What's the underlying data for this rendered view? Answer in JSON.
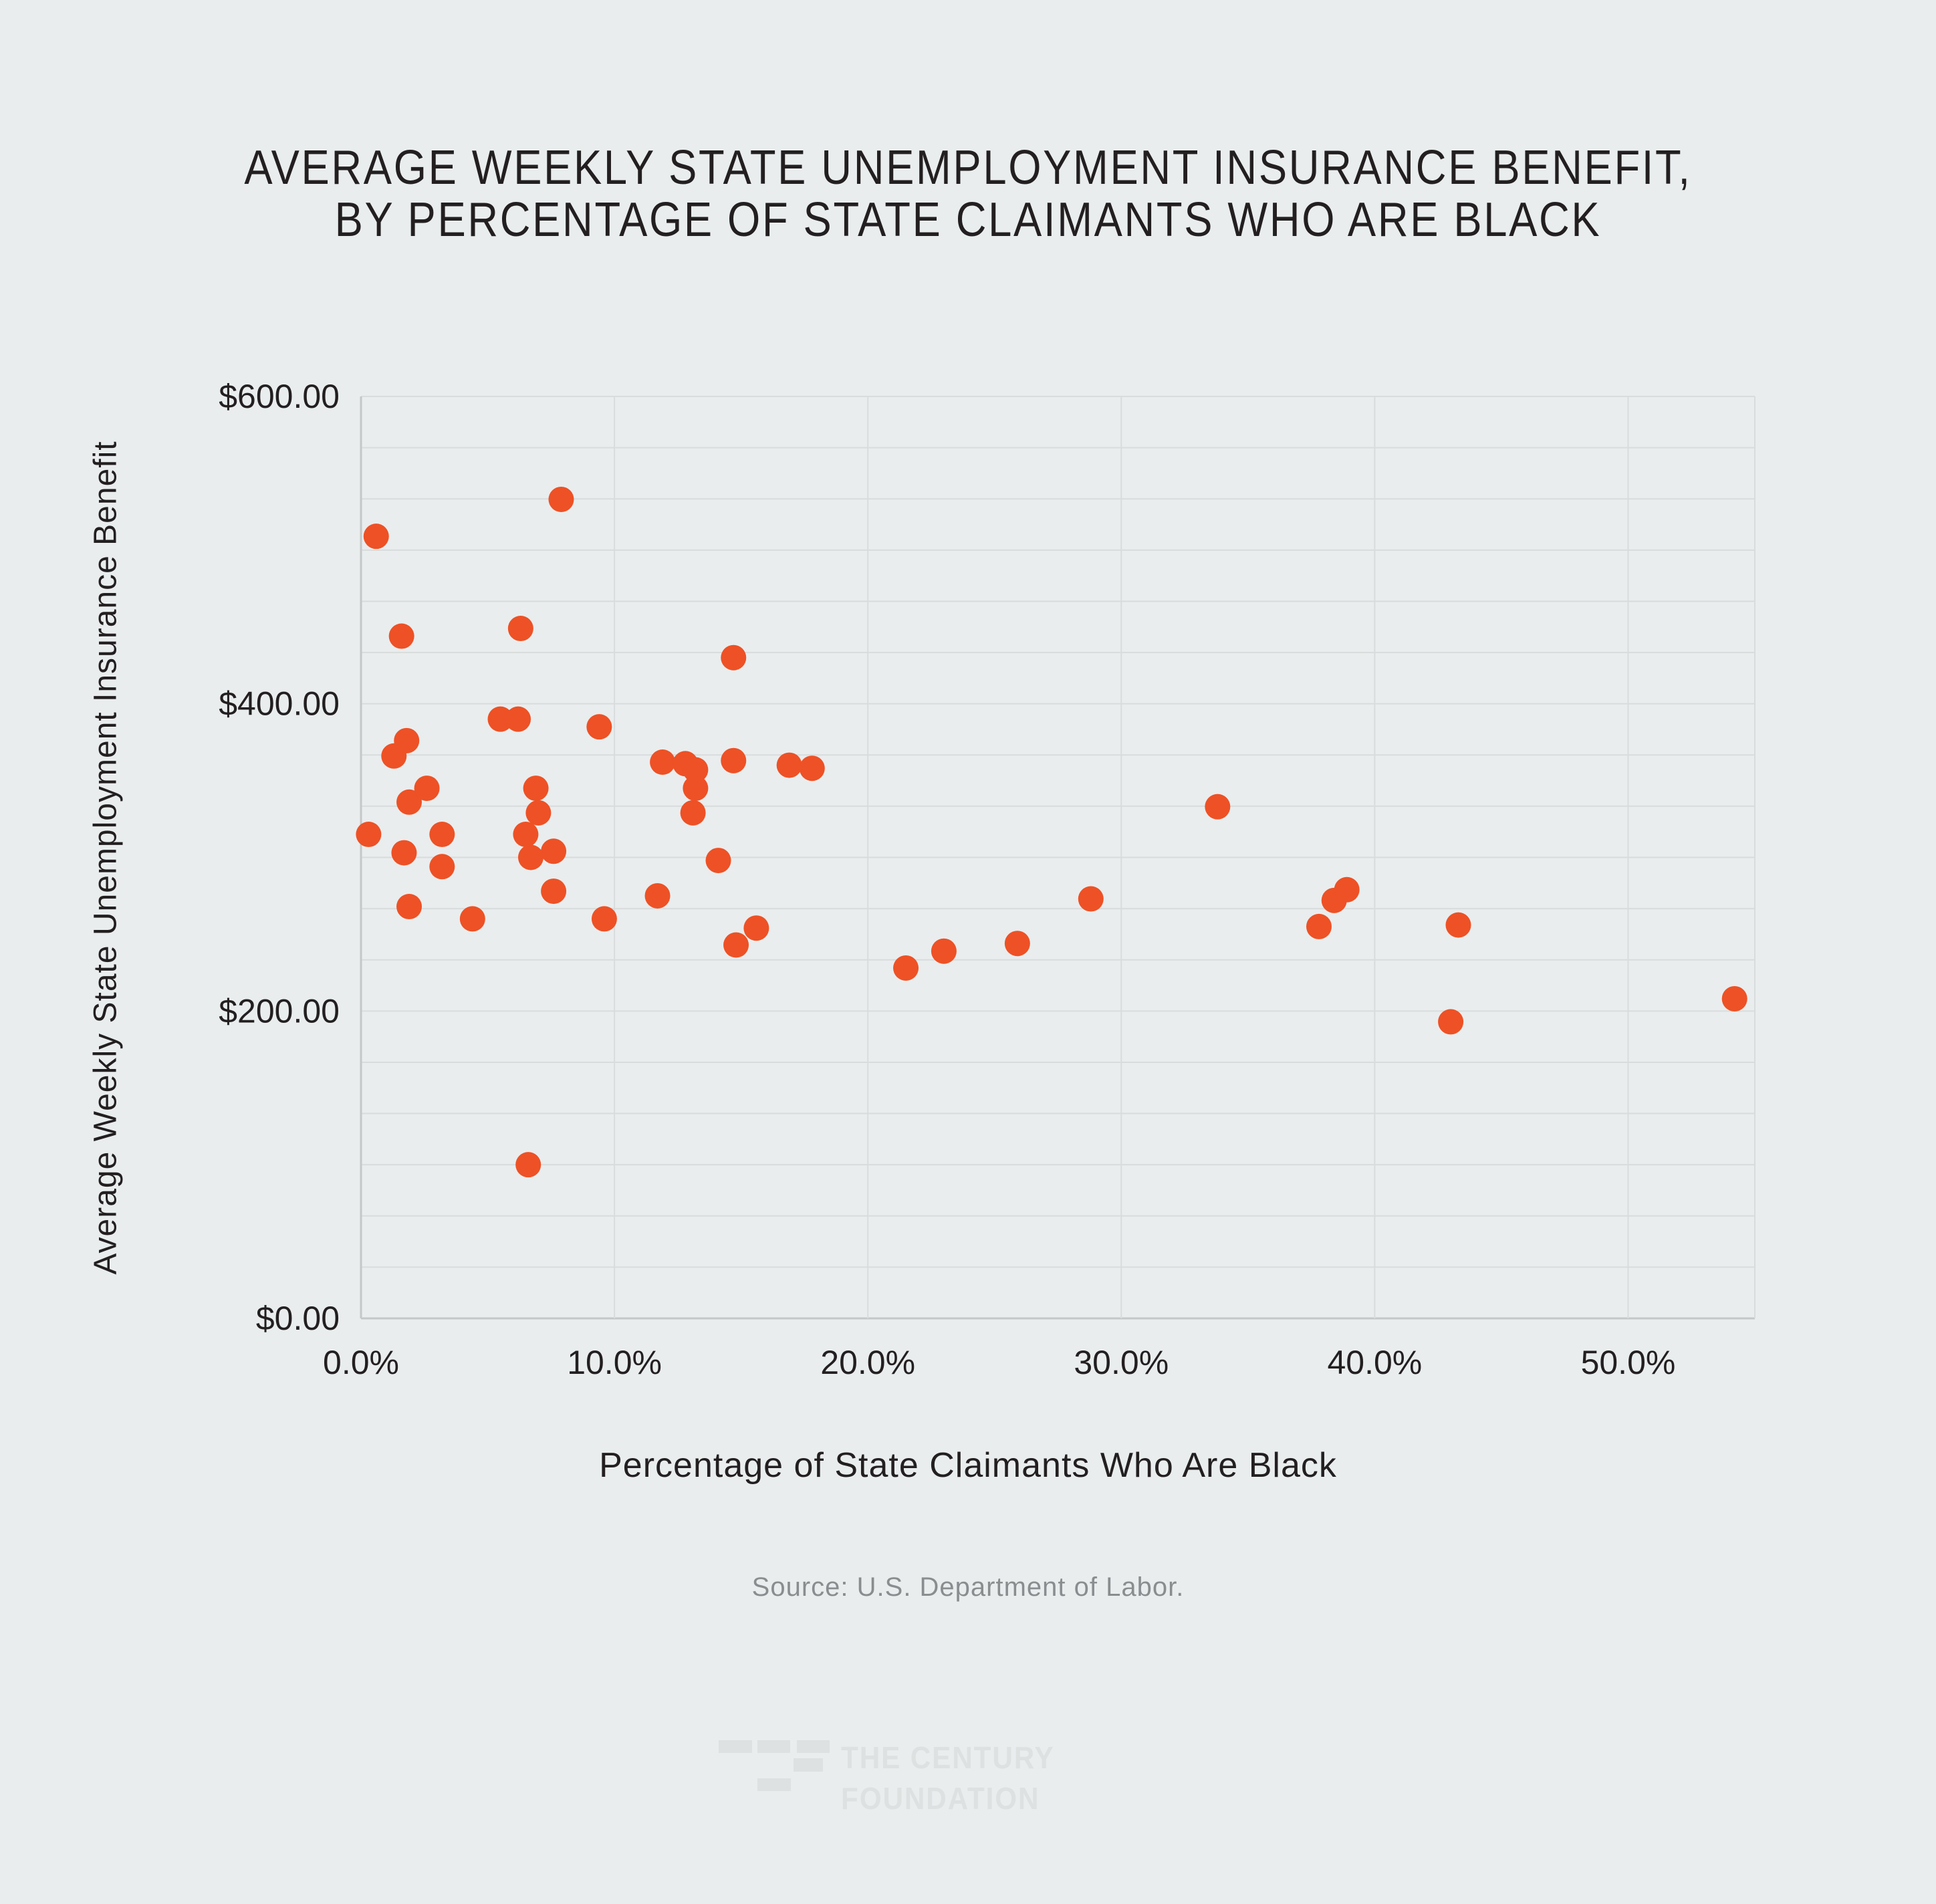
{
  "colors": {
    "background": "#e9edee",
    "accent": "#ee5125",
    "gridline": "#d8dcdc",
    "axis_line": "#c4c8c8",
    "title_text": "#231f20",
    "tick_text": "#231f20",
    "source_text": "#8a8d8f",
    "logo": "#dde1e1"
  },
  "title": {
    "line1": "AVERAGE WEEKLY STATE UNEMPLOYMENT INSURANCE BENEFIT,",
    "line2": "BY PERCENTAGE OF STATE CLAIMANTS WHO ARE BLACK"
  },
  "source_text": "Source: U.S. Department of Labor.",
  "logo": {
    "name_line1": "THE CENTURY",
    "name_line2": "FOUNDATION"
  },
  "chart_data": {
    "type": "scatter",
    "title": "Average Weekly State Unemployment Insurance Benefit, by Percentage of State Claimants Who Are Black",
    "xlabel": "Percentage of State Claimants Who Are Black",
    "ylabel": "Average Weekly State Unemployment Insurance Benefit",
    "xlim": [
      0,
      55
    ],
    "ylim": [
      0,
      600
    ],
    "grid": "on",
    "legend_position": "none",
    "x_ticks": [
      {
        "value": 0,
        "label": "0.0%"
      },
      {
        "value": 10,
        "label": "10.0%"
      },
      {
        "value": 20,
        "label": "20.0%"
      },
      {
        "value": 30,
        "label": "30.0%"
      },
      {
        "value": 40,
        "label": "40.0%"
      },
      {
        "value": 50,
        "label": "50.0%"
      }
    ],
    "y_ticks": [
      {
        "value": 0,
        "label": "$0.00"
      },
      {
        "value": 200,
        "label": "$200.00"
      },
      {
        "value": 400,
        "label": "$400.00"
      },
      {
        "value": 600,
        "label": "$600.00"
      }
    ],
    "x_gridlines": [
      0,
      10,
      20,
      30,
      40,
      50,
      55
    ],
    "y_gridline_count": 18,
    "marker_radius_px": 19,
    "point_color": "#ee5125",
    "points": [
      [
        0.3,
        315
      ],
      [
        0.6,
        509
      ],
      [
        1.3,
        366
      ],
      [
        1.6,
        444
      ],
      [
        1.7,
        303
      ],
      [
        1.8,
        376
      ],
      [
        1.9,
        336
      ],
      [
        1.9,
        268
      ],
      [
        2.6,
        345
      ],
      [
        3.2,
        315
      ],
      [
        3.2,
        294
      ],
      [
        4.4,
        260
      ],
      [
        5.5,
        390
      ],
      [
        6.2,
        390
      ],
      [
        6.3,
        449
      ],
      [
        6.5,
        315
      ],
      [
        6.6,
        100
      ],
      [
        6.7,
        300
      ],
      [
        6.9,
        345
      ],
      [
        7.0,
        329
      ],
      [
        7.6,
        304
      ],
      [
        7.6,
        278
      ],
      [
        7.9,
        533
      ],
      [
        9.4,
        385
      ],
      [
        9.6,
        260
      ],
      [
        11.7,
        275
      ],
      [
        11.9,
        362
      ],
      [
        12.8,
        361
      ],
      [
        13.1,
        329
      ],
      [
        13.2,
        357
      ],
      [
        13.2,
        345
      ],
      [
        14.1,
        298
      ],
      [
        14.7,
        430
      ],
      [
        14.7,
        363
      ],
      [
        14.8,
        243
      ],
      [
        15.6,
        254
      ],
      [
        16.9,
        360
      ],
      [
        17.8,
        358
      ],
      [
        21.5,
        228
      ],
      [
        23.0,
        239
      ],
      [
        25.9,
        244
      ],
      [
        28.8,
        273
      ],
      [
        33.8,
        333
      ],
      [
        37.8,
        255
      ],
      [
        38.4,
        272
      ],
      [
        38.9,
        279
      ],
      [
        43.0,
        193
      ],
      [
        43.3,
        256
      ],
      [
        54.2,
        208
      ]
    ]
  }
}
